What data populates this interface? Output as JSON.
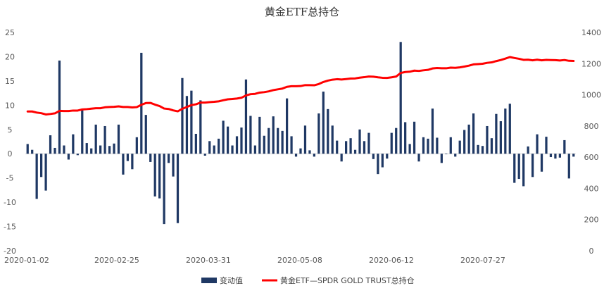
{
  "chart_data": {
    "type": "bar+line",
    "title": "黄金ETF总持仓",
    "x_tick_labels": [
      "2020-01-02",
      "2020-02-25",
      "2020-03-31",
      "2020-05-08",
      "2020-06-12",
      "2020-07-27"
    ],
    "y_left": {
      "min": -20,
      "max": 25,
      "step": 5
    },
    "y_right": {
      "min": 0,
      "max": 1400,
      "step": 200
    },
    "series": [
      {
        "name": "变动值",
        "type": "bar",
        "axis": "left",
        "color": "#1f3864",
        "values": [
          2.0,
          0.8,
          -9.3,
          -4.8,
          -7.6,
          3.8,
          1.2,
          19.2,
          1.7,
          -1.2,
          4.0,
          -0.3,
          9.2,
          2.2,
          1.1,
          6.0,
          1.7,
          5.7,
          1.6,
          2.1,
          6.0,
          -4.3,
          -1.5,
          -3.2,
          3.4,
          20.8,
          8.0,
          -1.7,
          -8.8,
          -9.2,
          -14.5,
          -1.9,
          -4.7,
          -14.3,
          15.6,
          11.9,
          13.0,
          4.1,
          11.0,
          -0.4,
          2.6,
          1.7,
          3.1,
          6.8,
          5.6,
          1.7,
          3.6,
          5.4,
          15.3,
          7.8,
          1.7,
          7.6,
          3.7,
          5.3,
          7.7,
          5.3,
          4.7,
          11.4,
          3.6,
          -0.6,
          1.1,
          5.8,
          0.7,
          -0.6,
          8.3,
          12.8,
          9.2,
          5.8,
          2.7,
          -1.6,
          2.6,
          3.2,
          0.8,
          5.0,
          2.6,
          4.3,
          -1.1,
          -4.2,
          -2.8,
          -1.0,
          4.3,
          5.3,
          23.0,
          6.5,
          2.0,
          6.6,
          -1.6,
          3.4,
          3.1,
          9.3,
          3.3,
          -1.9,
          -0.1,
          3.4,
          -0.6,
          2.7,
          4.9,
          6.0,
          8.3,
          1.8,
          1.6,
          5.7,
          3.2,
          8.2,
          6.7,
          9.3,
          10.3,
          -6.0,
          -5.2,
          -6.7,
          1.5,
          -4.8,
          4.0,
          -3.7,
          3.5,
          -0.7,
          -1.0,
          -0.8,
          2.8,
          -5.1,
          -0.6
        ]
      },
      {
        "name": "黄金ETF—SPDR GOLD TRUST总持仓",
        "type": "line",
        "axis": "right",
        "color": "#ff0000",
        "values": [
          893,
          893,
          886,
          882,
          874,
          877,
          881,
          897,
          896,
          896,
          899,
          899,
          906,
          908,
          911,
          914,
          914,
          920,
          922,
          923,
          926,
          922,
          922,
          919,
          921,
          936,
          947,
          948,
          937,
          928,
          912,
          909,
          900,
          894,
          910,
          922,
          934,
          939,
          950,
          950,
          953,
          955,
          958,
          965,
          971,
          973,
          976,
          981,
          996,
          1004,
          1006,
          1014,
          1017,
          1022,
          1030,
          1035,
          1040,
          1051,
          1055,
          1055,
          1056,
          1062,
          1062,
          1061,
          1069,
          1082,
          1091,
          1097,
          1100,
          1098,
          1101,
          1104,
          1105,
          1110,
          1113,
          1117,
          1116,
          1112,
          1109,
          1108,
          1112,
          1117,
          1140,
          1146,
          1148,
          1155,
          1153,
          1157,
          1160,
          1169,
          1172,
          1170,
          1170,
          1174,
          1173,
          1176,
          1181,
          1187,
          1195,
          1197,
          1199,
          1205,
          1208,
          1216,
          1223,
          1232,
          1242,
          1236,
          1231,
          1224,
          1225,
          1221,
          1225,
          1221,
          1224,
          1223,
          1222,
          1220,
          1223,
          1218,
          1217
        ]
      }
    ]
  }
}
